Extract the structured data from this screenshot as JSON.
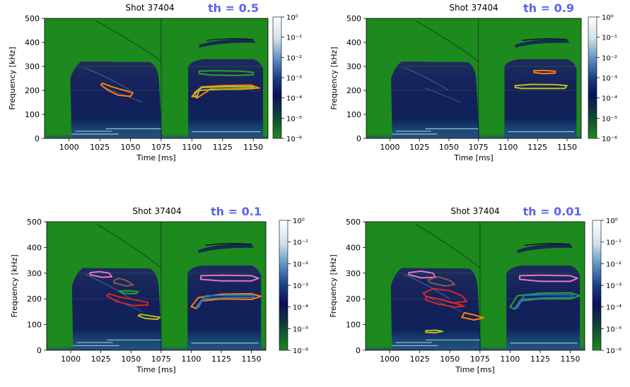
{
  "chart_data": [
    {
      "type": "heatmap",
      "title": "Shot 37404",
      "annotation": "th = 0.5",
      "xlabel": "Time [ms]",
      "ylabel": "Frequency [kHz]",
      "xlim": [
        980,
        1162
      ],
      "ylim": [
        0,
        500
      ],
      "xticks": [
        "1000",
        "1025",
        "1050",
        "1075",
        "1100",
        "1125",
        "1150"
      ],
      "yticks": [
        "0",
        "100",
        "200",
        "300",
        "400",
        "500"
      ],
      "colorbar": {
        "scale": "log",
        "ticks": [
          "10⁰",
          "10⁻¹",
          "10⁻²",
          "10⁻³",
          "10⁻⁴",
          "10⁻⁵",
          "10⁻⁶"
        ]
      },
      "contours": [
        {
          "color": "#ff7f0e",
          "points": [
            [
              1027,
              230
            ],
            [
              1035,
              215
            ],
            [
              1045,
              200
            ],
            [
              1052,
              190
            ],
            [
              1050,
              175
            ],
            [
              1040,
              180
            ],
            [
              1032,
              200
            ],
            [
              1026,
              222
            ]
          ]
        },
        {
          "color": "#2ca02c",
          "points": [
            [
              1106,
              280
            ],
            [
              1120,
              282
            ],
            [
              1140,
              280
            ],
            [
              1150,
              275
            ],
            [
              1150,
              265
            ],
            [
              1135,
              262
            ],
            [
              1115,
              264
            ],
            [
              1106,
              270
            ]
          ]
        },
        {
          "color": "#ff7f0e",
          "points": [
            [
              1102,
              190
            ],
            [
              1108,
              215
            ],
            [
              1125,
              220
            ],
            [
              1148,
              222
            ],
            [
              1155,
              210
            ],
            [
              1140,
              205
            ],
            [
              1115,
              205
            ],
            [
              1104,
              168
            ]
          ]
        },
        {
          "color": "#bcbd22",
          "points": [
            [
              1100,
              175
            ],
            [
              1108,
              212
            ],
            [
              1130,
              215
            ],
            [
              1150,
              215
            ],
            [
              1150,
              208
            ],
            [
              1128,
              206
            ],
            [
              1106,
              200
            ],
            [
              1104,
              172
            ]
          ]
        }
      ]
    },
    {
      "type": "heatmap",
      "title": "Shot 37404",
      "annotation": "th = 0.9",
      "xlabel": "Time [ms]",
      "ylabel": "Frequency [kHz]",
      "xlim": [
        980,
        1162
      ],
      "ylim": [
        0,
        500
      ],
      "xticks": [
        "1000",
        "1025",
        "1050",
        "1075",
        "1100",
        "1125",
        "1150"
      ],
      "yticks": [
        "0",
        "100",
        "200",
        "300",
        "400",
        "500"
      ],
      "colorbar": {
        "scale": "log",
        "ticks": [
          "10⁰",
          "10⁻¹",
          "10⁻²",
          "10⁻³",
          "10⁻⁴",
          "10⁻⁵",
          "10⁻⁶"
        ]
      },
      "contours": [
        {
          "color": "#ff7f0e",
          "points": [
            [
              1122,
              282
            ],
            [
              1130,
              283
            ],
            [
              1140,
              280
            ],
            [
              1140,
              272
            ],
            [
              1130,
              270
            ],
            [
              1122,
              274
            ]
          ]
        },
        {
          "color": "#bcbd22",
          "points": [
            [
              1106,
              220
            ],
            [
              1120,
              225
            ],
            [
              1140,
              224
            ],
            [
              1150,
              220
            ],
            [
              1148,
              208
            ],
            [
              1130,
              208
            ],
            [
              1112,
              208
            ],
            [
              1106,
              212
            ]
          ]
        }
      ]
    },
    {
      "type": "heatmap",
      "title": "Shot 37404",
      "annotation": "th = 0.1",
      "xlabel": "Time [ms]",
      "ylabel": "Frequency [kHz]",
      "xlim": [
        980,
        1162
      ],
      "ylim": [
        0,
        500
      ],
      "xticks": [
        "1000",
        "1025",
        "1050",
        "1075",
        "1100",
        "1125",
        "1150"
      ],
      "yticks": [
        "0",
        "100",
        "200",
        "300",
        "400",
        "500"
      ],
      "colorbar": {
        "scale": "log",
        "ticks": [
          "10⁰",
          "10⁻¹",
          "10⁻²",
          "10⁻³",
          "10⁻⁴",
          "10⁻⁵",
          "10⁻⁶"
        ]
      },
      "contours": [
        {
          "color": "#e377c2",
          "points": [
            [
              1016,
              302
            ],
            [
              1024,
              306
            ],
            [
              1032,
              300
            ],
            [
              1034,
              286
            ],
            [
              1026,
              284
            ],
            [
              1016,
              294
            ]
          ]
        },
        {
          "color": "#8c564b",
          "points": [
            [
              1036,
              272
            ],
            [
              1040,
              280
            ],
            [
              1046,
              272
            ],
            [
              1052,
              254
            ],
            [
              1046,
              250
            ],
            [
              1036,
              262
            ]
          ]
        },
        {
          "color": "#2ca02c",
          "points": [
            [
              1040,
              230
            ],
            [
              1048,
              232
            ],
            [
              1056,
              228
            ],
            [
              1054,
              220
            ],
            [
              1044,
              222
            ]
          ]
        },
        {
          "color": "#d62728",
          "points": [
            [
              1032,
              220
            ],
            [
              1040,
              208
            ],
            [
              1054,
              196
            ],
            [
              1064,
              186
            ],
            [
              1064,
              176
            ],
            [
              1052,
              174
            ],
            [
              1038,
              190
            ],
            [
              1030,
              212
            ]
          ]
        },
        {
          "color": "#bcbd22",
          "points": [
            [
              1058,
              140
            ],
            [
              1066,
              134
            ],
            [
              1074,
              128
            ],
            [
              1072,
              120
            ],
            [
              1062,
              124
            ],
            [
              1056,
              134
            ]
          ]
        },
        {
          "color": "#e377c2",
          "points": [
            [
              1108,
              290
            ],
            [
              1125,
              292
            ],
            [
              1150,
              290
            ],
            [
              1156,
              280
            ],
            [
              1150,
              270
            ],
            [
              1125,
              270
            ],
            [
              1108,
              276
            ]
          ]
        },
        {
          "color": "#ff7f0e",
          "points": [
            [
              1100,
              170
            ],
            [
              1106,
              205
            ],
            [
              1125,
              218
            ],
            [
              1150,
              220
            ],
            [
              1158,
              210
            ],
            [
              1150,
              198
            ],
            [
              1125,
              200
            ],
            [
              1108,
              192
            ],
            [
              1104,
              162
            ]
          ]
        },
        {
          "color": "#1f77b4",
          "points": [
            [
              1104,
              168
            ],
            [
              1112,
              212
            ],
            [
              1130,
              214
            ],
            [
              1152,
              214
            ],
            [
              1152,
              206
            ],
            [
              1130,
              205
            ],
            [
              1110,
              200
            ],
            [
              1106,
              166
            ]
          ]
        }
      ]
    },
    {
      "type": "heatmap",
      "title": "Shot 37404",
      "annotation": "th = 0.01",
      "xlabel": "Time [ms]",
      "ylabel": "Frequency [kHz]",
      "xlim": [
        980,
        1162
      ],
      "ylim": [
        0,
        500
      ],
      "xticks": [
        "1000",
        "1025",
        "1050",
        "1075",
        "1100",
        "1125",
        "1150"
      ],
      "yticks": [
        "0",
        "100",
        "200",
        "300",
        "400",
        "500"
      ],
      "colorbar": {
        "scale": "log",
        "ticks": [
          "10⁰",
          "10⁻¹",
          "10⁻²",
          "10⁻³",
          "10⁻⁴",
          "10⁻⁵",
          "10⁻⁶"
        ]
      },
      "contours": [
        {
          "color": "#e377c2",
          "points": [
            [
              1016,
              302
            ],
            [
              1026,
              308
            ],
            [
              1036,
              300
            ],
            [
              1038,
              284
            ],
            [
              1026,
              282
            ],
            [
              1016,
              294
            ]
          ]
        },
        {
          "color": "#8c564b",
          "points": [
            [
              1032,
              274
            ],
            [
              1040,
              286
            ],
            [
              1050,
              272
            ],
            [
              1054,
              256
            ],
            [
              1046,
              250
            ],
            [
              1034,
              262
            ]
          ]
        },
        {
          "color": "#d62728",
          "points": [
            [
              1028,
              222
            ],
            [
              1036,
              240
            ],
            [
              1050,
              232
            ],
            [
              1060,
              212
            ],
            [
              1064,
              190
            ],
            [
              1052,
              184
            ],
            [
              1040,
              200
            ],
            [
              1030,
              210
            ]
          ]
        },
        {
          "color": "#d62728",
          "points": [
            [
              1030,
              210
            ],
            [
              1042,
              198
            ],
            [
              1054,
              184
            ],
            [
              1062,
              172
            ],
            [
              1054,
              168
            ],
            [
              1040,
              180
            ],
            [
              1030,
              196
            ]
          ]
        },
        {
          "color": "#ff7f0e",
          "points": [
            [
              1062,
              146
            ],
            [
              1070,
              138
            ],
            [
              1078,
              126
            ],
            [
              1070,
              118
            ],
            [
              1060,
              128
            ]
          ]
        },
        {
          "color": "#bcbd22",
          "points": [
            [
              1030,
              76
            ],
            [
              1038,
              78
            ],
            [
              1044,
              74
            ],
            [
              1038,
              68
            ],
            [
              1030,
              70
            ]
          ]
        },
        {
          "color": "#e377c2",
          "points": [
            [
              1108,
              290
            ],
            [
              1125,
              292
            ],
            [
              1150,
              290
            ],
            [
              1156,
              280
            ],
            [
              1150,
              268
            ],
            [
              1125,
              268
            ],
            [
              1108,
              276
            ]
          ]
        },
        {
          "color": "#2ca02c",
          "points": [
            [
              1100,
              168
            ],
            [
              1106,
              212
            ],
            [
              1125,
              222
            ],
            [
              1150,
              224
            ],
            [
              1158,
              212
            ],
            [
              1150,
              200
            ],
            [
              1125,
              200
            ],
            [
              1108,
              192
            ],
            [
              1104,
              160
            ]
          ]
        },
        {
          "color": "#1f77b4",
          "points": [
            [
              1104,
              166
            ],
            [
              1112,
              214
            ],
            [
              1130,
              216
            ],
            [
              1152,
              216
            ],
            [
              1152,
              206
            ],
            [
              1130,
              204
            ],
            [
              1110,
              198
            ],
            [
              1106,
              164
            ]
          ]
        }
      ]
    }
  ],
  "colors": {
    "background_green": "#1c8a1c",
    "title_accent": "#5b63ee"
  }
}
